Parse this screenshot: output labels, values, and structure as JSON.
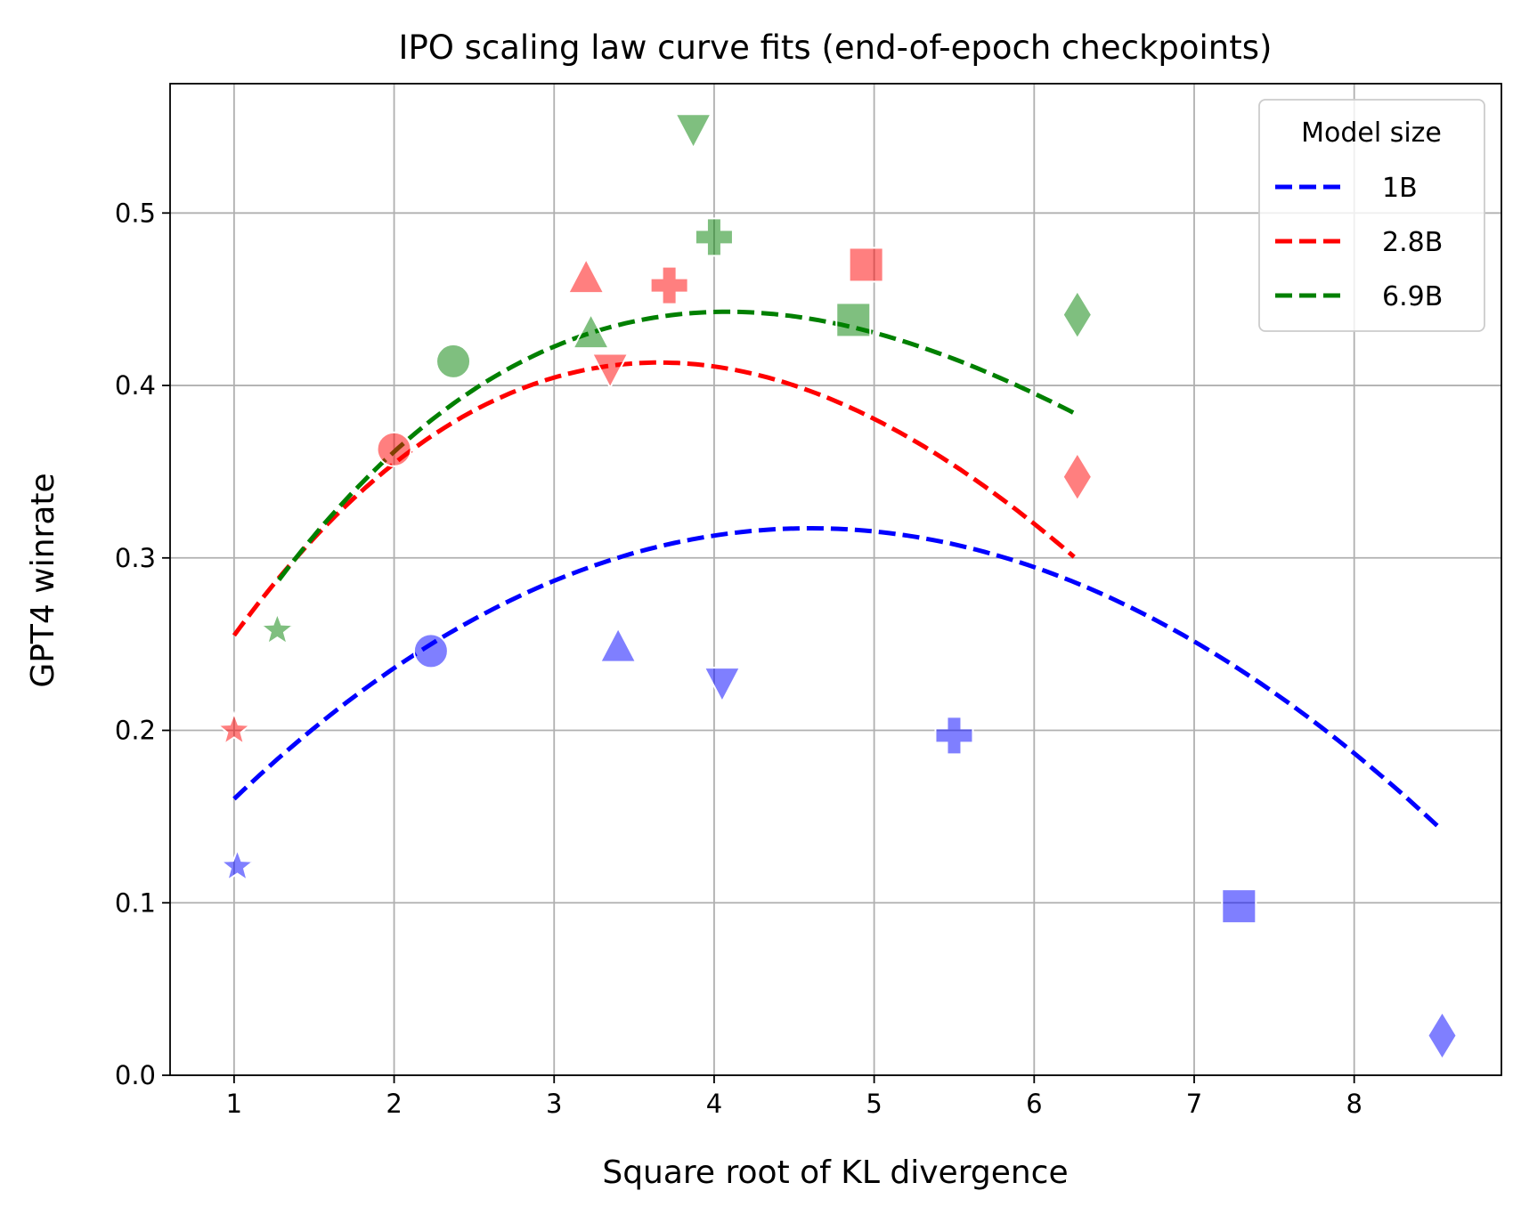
{
  "chart_data": {
    "type": "scatter",
    "title": "IPO scaling law curve fits (end-of-epoch checkpoints)",
    "xlabel": "Square root of KL divergence",
    "ylabel": "GPT4 winrate",
    "xlim": [
      0.6,
      8.92
    ],
    "ylim": [
      0.0,
      0.575
    ],
    "x_ticks": [
      "1",
      "2",
      "3",
      "4",
      "5",
      "6",
      "7",
      "8"
    ],
    "y_ticks": [
      "0.0",
      "0.1",
      "0.2",
      "0.3",
      "0.4",
      "0.5"
    ],
    "grid": true,
    "legend": {
      "title": "Model size",
      "position": "top-right"
    },
    "marker_alpha": 0.5,
    "series": [
      {
        "name": "1B",
        "color": "#0000ff",
        "fit": {
          "x_range": [
            1.0,
            8.55
          ],
          "coefficients": [
            0.0586,
            0.1148,
            -0.01326,
            0.000114
          ]
        },
        "points": [
          {
            "x": 1.02,
            "y": 0.121,
            "marker": "star"
          },
          {
            "x": 2.23,
            "y": 0.246,
            "marker": "circle"
          },
          {
            "x": 3.4,
            "y": 0.248,
            "marker": "triangle-up"
          },
          {
            "x": 4.05,
            "y": 0.228,
            "marker": "triangle-down"
          },
          {
            "x": 5.5,
            "y": 0.197,
            "marker": "plus"
          },
          {
            "x": 7.28,
            "y": 0.098,
            "marker": "square"
          },
          {
            "x": 8.55,
            "y": 0.023,
            "marker": "diamond"
          }
        ]
      },
      {
        "name": "2.8B",
        "color": "#ff0000",
        "fit": {
          "x_range": [
            1.0,
            6.25
          ],
          "coefficients": [
            0.0991,
            0.1863,
            -0.0314,
            0.00108
          ]
        },
        "points": [
          {
            "x": 1.0,
            "y": 0.2,
            "marker": "star"
          },
          {
            "x": 2.0,
            "y": 0.363,
            "marker": "circle"
          },
          {
            "x": 3.2,
            "y": 0.462,
            "marker": "triangle-up"
          },
          {
            "x": 3.35,
            "y": 0.41,
            "marker": "triangle-down"
          },
          {
            "x": 3.72,
            "y": 0.458,
            "marker": "plus"
          },
          {
            "x": 4.95,
            "y": 0.47,
            "marker": "square"
          },
          {
            "x": 6.27,
            "y": 0.347,
            "marker": "diamond"
          }
        ]
      },
      {
        "name": "6.9B",
        "color": "#008000",
        "fit": {
          "x_range": [
            1.28,
            6.25
          ],
          "coefficients": [
            0.0811,
            0.2019,
            -0.0338,
            0.00148
          ]
        },
        "points": [
          {
            "x": 1.27,
            "y": 0.258,
            "marker": "star"
          },
          {
            "x": 2.37,
            "y": 0.414,
            "marker": "circle"
          },
          {
            "x": 3.23,
            "y": 0.43,
            "marker": "triangle-up"
          },
          {
            "x": 3.87,
            "y": 0.549,
            "marker": "triangle-down"
          },
          {
            "x": 4.0,
            "y": 0.486,
            "marker": "plus"
          },
          {
            "x": 4.87,
            "y": 0.438,
            "marker": "square"
          },
          {
            "x": 6.27,
            "y": 0.441,
            "marker": "diamond"
          }
        ]
      }
    ]
  }
}
